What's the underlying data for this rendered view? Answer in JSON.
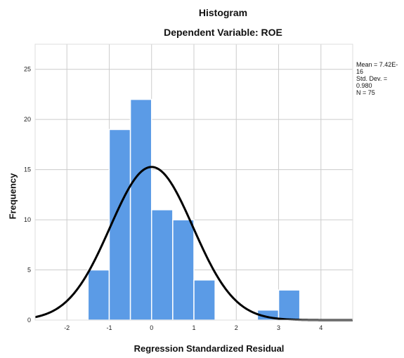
{
  "chart_data": {
    "type": "bar",
    "title": "Histogram",
    "subtitle": "Dependent Variable: ROE",
    "xlabel": "Regression Standardized Residual",
    "ylabel": "Frequency",
    "xlim": [
      -2.75,
      4.75
    ],
    "ylim": [
      0,
      27.5
    ],
    "x_ticks": [
      -2,
      -1,
      0,
      1,
      2,
      3,
      4
    ],
    "y_ticks": [
      0,
      5,
      10,
      15,
      20,
      25
    ],
    "bin_width": 0.5,
    "bins": [
      {
        "start": -1.5,
        "end": -1.0,
        "count": 5
      },
      {
        "start": -1.0,
        "end": -0.5,
        "count": 19
      },
      {
        "start": -0.5,
        "end": 0.0,
        "count": 22
      },
      {
        "start": 0.0,
        "end": 0.5,
        "count": 11
      },
      {
        "start": 0.5,
        "end": 1.0,
        "count": 10
      },
      {
        "start": 1.0,
        "end": 1.5,
        "count": 4
      },
      {
        "start": 2.5,
        "end": 3.0,
        "count": 1
      },
      {
        "start": 3.0,
        "end": 3.5,
        "count": 3
      }
    ],
    "normal_curve": {
      "mean": 0.0,
      "sd": 0.98,
      "n": 75
    },
    "stats_text": [
      "Mean = 7.42E-16",
      "Std. Dev. = 0.980",
      "N = 75"
    ],
    "legend_placement": "top-right",
    "grid": true,
    "colors": {
      "bar": "#5b9be6",
      "bar_edge": "#ffffff",
      "curve": "#000000",
      "grid": "#cccccc",
      "axis": "#777777"
    }
  }
}
